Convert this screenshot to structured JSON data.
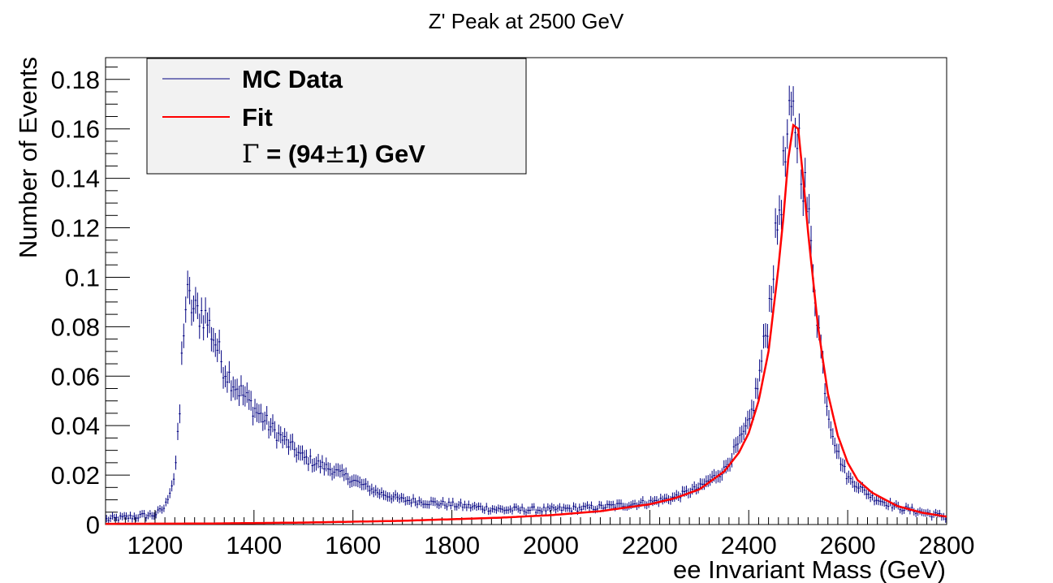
{
  "chart_data": {
    "type": "line",
    "title": "Z' Peak at 2500 GeV",
    "xlabel": "ee Invariant Mass (GeV)",
    "ylabel": "Number of Events",
    "xlim": [
      1100,
      2800
    ],
    "ylim": [
      0,
      0.1888
    ],
    "x_ticks": [
      1200,
      1400,
      1600,
      1800,
      2000,
      2200,
      2400,
      2600,
      2800
    ],
    "x_tick_labels": [
      "1200",
      "1400",
      "1600",
      "1800",
      "2000",
      "2200",
      "2400",
      "2600",
      "2800"
    ],
    "y_ticks": [
      0,
      0.02,
      0.04,
      0.06,
      0.08,
      0.1,
      0.12,
      0.14,
      0.16,
      0.18
    ],
    "y_tick_labels": [
      "0",
      "0.02",
      "0.04",
      "0.06",
      "0.08",
      "0.1",
      "0.12",
      "0.14",
      "0.16",
      "0.18"
    ],
    "grid": false,
    "legend_position": "top-left",
    "legend": {
      "entries": [
        "MC Data",
        "Fit"
      ],
      "annotation_prefix": "= (94",
      "annotation_suffix": "1) GeV"
    },
    "series": [
      {
        "name": "MC Data",
        "kind": "points-with-error-bars",
        "color": "#000080",
        "bin_width": 4,
        "x": [
          1100,
          1150,
          1200,
          1220,
          1240,
          1250,
          1255,
          1260,
          1265,
          1270,
          1280,
          1300,
          1320,
          1340,
          1360,
          1400,
          1440,
          1500,
          1560,
          1600,
          1650,
          1700,
          1750,
          1800,
          1850,
          1900,
          2000,
          2100,
          2200,
          2250,
          2300,
          2350,
          2400,
          2420,
          2440,
          2460,
          2480,
          2490,
          2500,
          2520,
          2540,
          2560,
          2580,
          2600,
          2650,
          2700,
          2750,
          2800
        ],
        "y": [
          0.002,
          0.003,
          0.004,
          0.007,
          0.02,
          0.045,
          0.072,
          0.085,
          0.092,
          0.09,
          0.086,
          0.085,
          0.075,
          0.063,
          0.057,
          0.047,
          0.038,
          0.027,
          0.022,
          0.018,
          0.013,
          0.01,
          0.009,
          0.008,
          0.007,
          0.006,
          0.006,
          0.007,
          0.009,
          0.011,
          0.015,
          0.022,
          0.04,
          0.058,
          0.085,
          0.125,
          0.158,
          0.164,
          0.158,
          0.125,
          0.082,
          0.046,
          0.029,
          0.019,
          0.011,
          0.007,
          0.005,
          0.003
        ],
        "error_y": 0.006
      },
      {
        "name": "Fit",
        "kind": "line",
        "color": "#ff0000",
        "x": [
          1100,
          1300,
          1500,
          1700,
          1900,
          2000,
          2100,
          2200,
          2250,
          2300,
          2350,
          2380,
          2400,
          2420,
          2440,
          2460,
          2470,
          2480,
          2490,
          2500,
          2510,
          2520,
          2540,
          2560,
          2580,
          2600,
          2620,
          2650,
          2700,
          2750,
          2800
        ],
        "y": [
          0.0003,
          0.0004,
          0.0008,
          0.0015,
          0.0028,
          0.0038,
          0.0054,
          0.0082,
          0.0106,
          0.0142,
          0.0214,
          0.029,
          0.037,
          0.05,
          0.07,
          0.104,
          0.124,
          0.148,
          0.1615,
          0.16,
          0.14,
          0.118,
          0.08,
          0.053,
          0.036,
          0.025,
          0.018,
          0.0128,
          0.0075,
          0.0048,
          0.0032
        ]
      }
    ]
  }
}
